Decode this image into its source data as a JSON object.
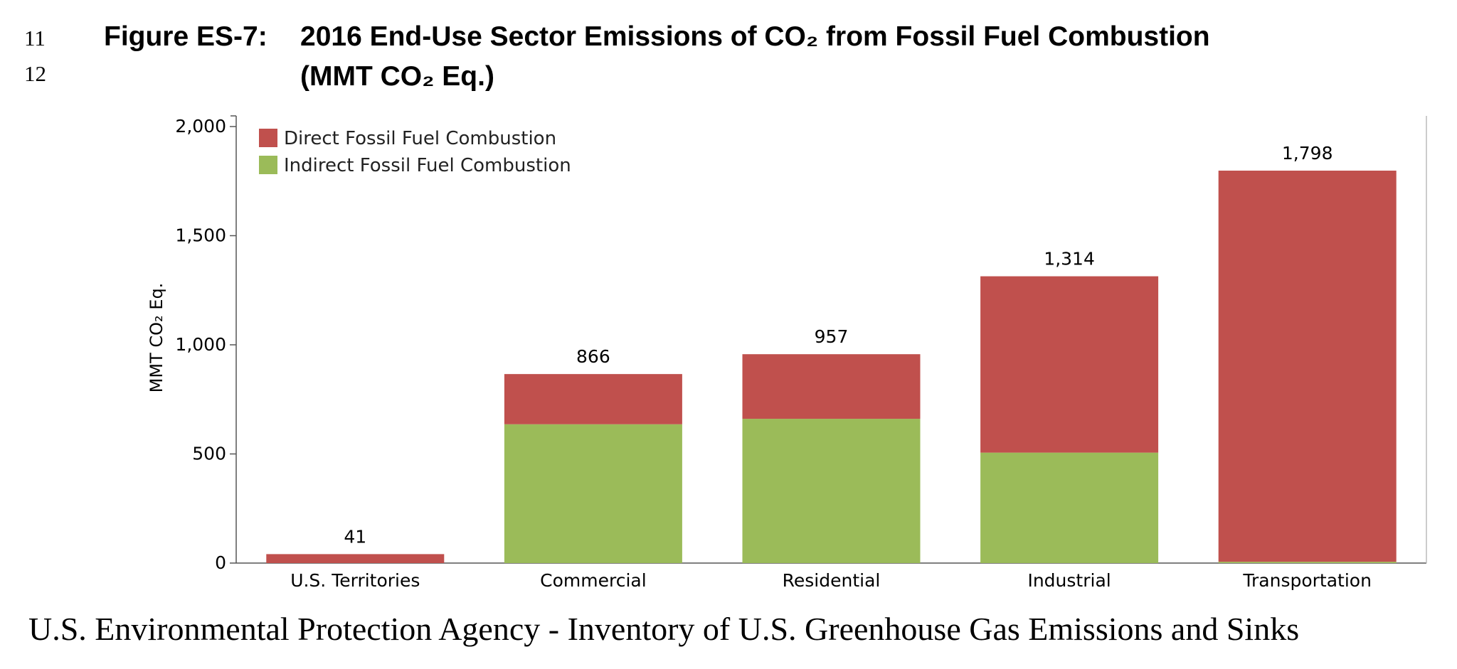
{
  "line_numbers": [
    "11",
    "12"
  ],
  "figure": {
    "label": "Figure ES-7:",
    "title_line1": "2016 End-Use Sector Emissions of CO₂ from Fossil Fuel Combustion",
    "title_line2": "(MMT CO₂ Eq.)"
  },
  "source": "U.S. Environmental Protection Agency - Inventory of U.S. Greenhouse Gas Emissions and Sinks",
  "chart_data": {
    "type": "bar",
    "stacked": true,
    "categories": [
      "U.S. Territories",
      "Commercial",
      "Residential",
      "Industrial",
      "Transportation"
    ],
    "series": [
      {
        "name": "Indirect Fossil Fuel Combustion",
        "color": "#9bbb59",
        "values": [
          0,
          636,
          661,
          506,
          6
        ]
      },
      {
        "name": "Direct Fossil Fuel Combustion",
        "color": "#c0504d",
        "values": [
          41,
          230,
          296,
          808,
          1792
        ]
      }
    ],
    "totals": [
      41,
      866,
      957,
      1314,
      1798
    ],
    "total_labels": [
      "41",
      "866",
      "957",
      "1,314",
      "1,798"
    ],
    "ylabel": "MMT CO₂ Eq.",
    "ylim": [
      0,
      2000
    ],
    "yticks": [
      0,
      500,
      1000,
      1500,
      2000
    ],
    "ytick_labels": [
      "0",
      "500",
      "1,000",
      "1,500",
      "2,000"
    ],
    "legend": {
      "placement": "top-left",
      "entries": [
        {
          "name": "Direct Fossil Fuel Combustion",
          "color": "#c0504d"
        },
        {
          "name": "Indirect Fossil Fuel Combustion",
          "color": "#9bbb59"
        }
      ]
    },
    "grid": false
  }
}
